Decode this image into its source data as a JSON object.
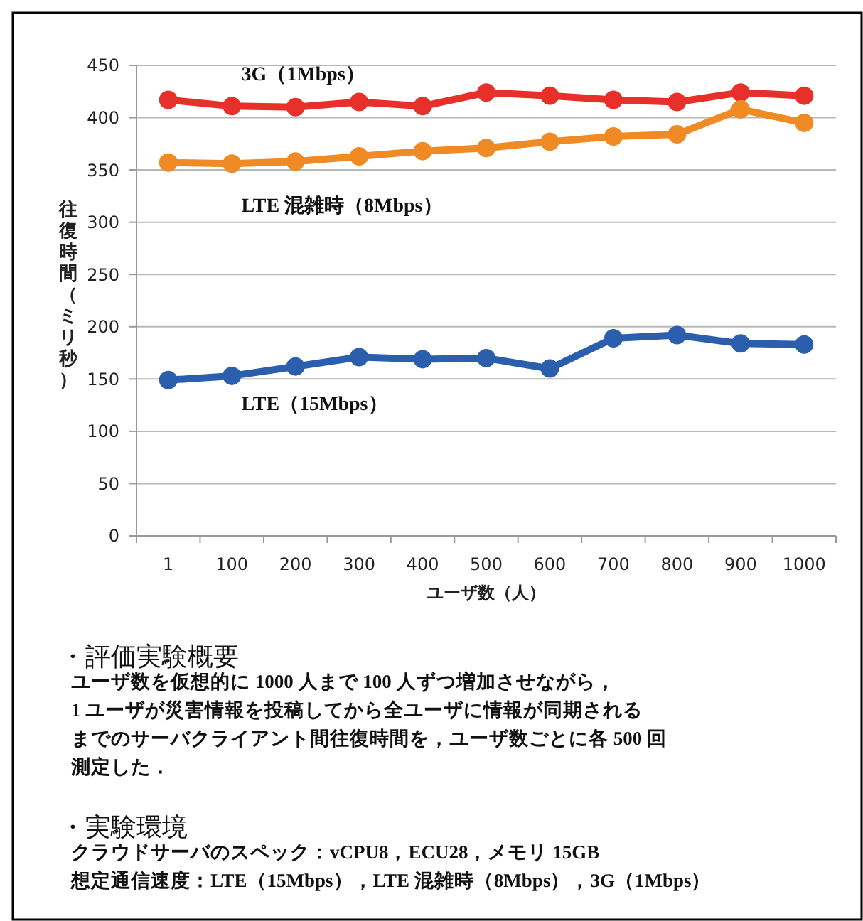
{
  "chart_data": {
    "type": "line",
    "xlabel": "ユーザ数（人）",
    "ylabel": "往復時間（ミリ秒）",
    "categories": [
      "1",
      "100",
      "200",
      "300",
      "400",
      "500",
      "600",
      "700",
      "800",
      "900",
      "1000"
    ],
    "series": [
      {
        "name": "3G（1Mbps）",
        "color": "#e8302a",
        "values": [
          417,
          411,
          410,
          415,
          411,
          424,
          421,
          417,
          415,
          424,
          421
        ]
      },
      {
        "name": "LTE 混雑時（8Mbps）",
        "color": "#f08a24",
        "values": [
          357,
          356,
          358,
          363,
          368,
          371,
          377,
          382,
          384,
          408,
          395
        ]
      },
      {
        "name": "LTE（15Mbps）",
        "color": "#2b5fad",
        "values": [
          149,
          153,
          162,
          171,
          169,
          170,
          160,
          189,
          192,
          184,
          183
        ]
      }
    ],
    "ylim": [
      0,
      450
    ],
    "yticks": [
      0,
      50,
      100,
      150,
      200,
      250,
      300,
      350,
      400,
      450
    ],
    "grid": "y",
    "marker": "circle",
    "line_style": "solid",
    "legend": false,
    "annotations": [
      "・評価実験概要",
      "ユーザ数を仮想的に 1000 人まで 100 人ずつ増加させながら，",
      "1 ユーザが災害情報を投稿してから全ユーザに情報が同期される",
      "までのサーバクライアント間往復時間を，ユーザ数ごとに各 500 回",
      "測定した．",
      "・実験環境",
      "クラウドサーバのスペック：vCPU8，ECU28，メモリ 15GB",
      "想定通信速度：LTE（15Mbps），LTE 混雑時（8Mbps），3G（1Mbps）"
    ]
  }
}
